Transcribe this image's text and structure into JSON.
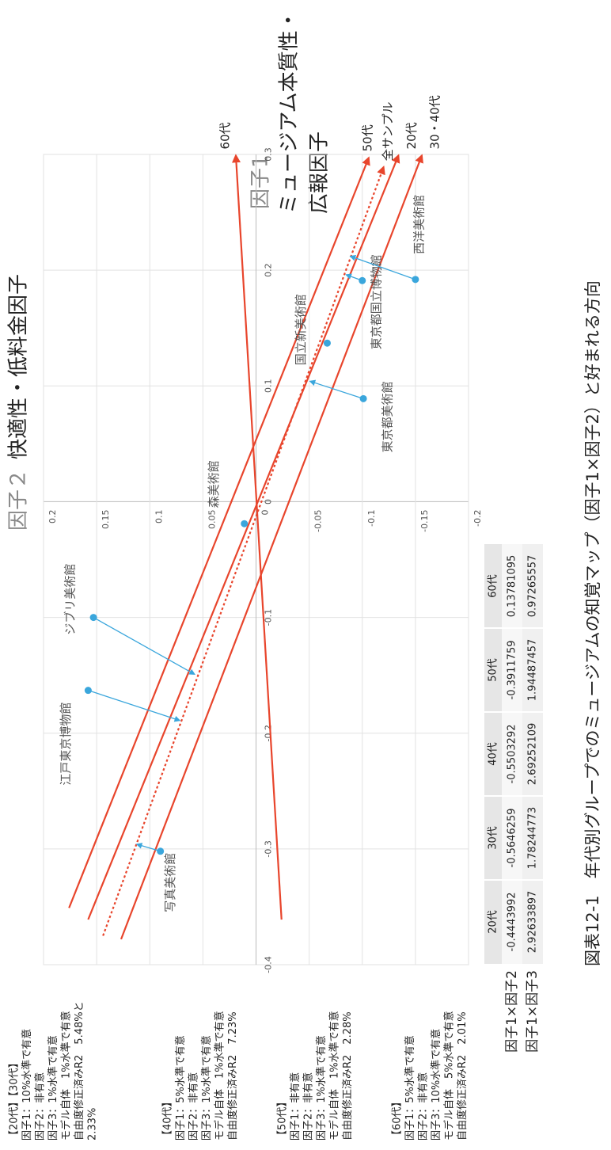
{
  "chart_data": {
    "type": "scatter",
    "x_axis_label": "因子1",
    "x_axis_desc": [
      "ミュージアム本質性・",
      "広報因子"
    ],
    "y_axis_label": "因子２",
    "y_axis_desc": "快適性・低料金因子",
    "xlim": [
      -0.4,
      0.3
    ],
    "xticks": [
      -0.4,
      -0.3,
      -0.2,
      -0.1,
      0,
      0.1,
      0.2,
      0.3
    ],
    "ylim": [
      -0.2,
      0.2
    ],
    "yticks": [
      -0.2,
      -0.15,
      -0.1,
      -0.05,
      0,
      0.05,
      0.1,
      0.15,
      0.2
    ],
    "grid": true,
    "points": {
      "color": "#3aa6dc",
      "labels": [
        "森美術館",
        "国立新美術館",
        "東京都美術館",
        "東京都国立博物館",
        "西洋美術館",
        "ジブリ美術館",
        "江戸東京博物館",
        "写真美術館"
      ],
      "x": [
        -0.019,
        0.137,
        0.089,
        0.191,
        0.192,
        -0.1,
        -0.163,
        -0.302
      ],
      "y": [
        0.011,
        -0.067,
        -0.101,
        -0.1,
        -0.15,
        0.153,
        0.158,
        0.09
      ],
      "arrow_x": [
        null,
        null,
        0.104,
        0.196,
        0.212,
        -0.149,
        -0.189,
        -0.296
      ],
      "arrow_y": [
        null,
        null,
        -0.051,
        -0.085,
        -0.089,
        0.058,
        0.072,
        0.112
      ]
    },
    "vectors": [
      {
        "name": "60代",
        "color": "#e8452c",
        "dashed": false,
        "x": [
          -0.361,
          0.299
        ],
        "y": [
          -0.024,
          0.019
        ]
      },
      {
        "name": "50代",
        "color": "#e8452c",
        "dashed": false,
        "x": [
          -0.351,
          0.297
        ],
        "y": [
          0.176,
          -0.106
        ]
      },
      {
        "name": "全サンプル",
        "color": "#e8452c",
        "dashed": true,
        "x": [
          -0.375,
          0.289
        ],
        "y": [
          0.144,
          -0.12
        ]
      },
      {
        "name": "20代",
        "color": "#e8452c",
        "dashed": false,
        "x": [
          -0.361,
          0.299
        ],
        "y": [
          0.158,
          -0.134
        ]
      },
      {
        "name": "30・40代",
        "color": "#e8452c",
        "dashed": false,
        "x": [
          -0.378,
          0.299
        ],
        "y": [
          0.127,
          -0.156
        ]
      }
    ]
  },
  "table": {
    "columns": [
      "20代",
      "30代",
      "40代",
      "50代",
      "60代"
    ],
    "rows": [
      {
        "label": "因子1×因子2",
        "values": [
          -0.4443992,
          -0.5646259,
          -0.5503292,
          -0.3911759,
          0.13781095
        ]
      },
      {
        "label": "因子1×因子3",
        "values": [
          2.92633897,
          1.78244773,
          2.69252109,
          1.94487457,
          0.97265557
        ]
      }
    ]
  },
  "notes": [
    [
      "【20代】【30代】",
      "因子1：10%水準で有意",
      "因子2：非有意",
      "因子3：1%水準で有意",
      "モデル自体　1%水準で有意",
      "自由度修正済みR2　5.48%と",
      "2.33%"
    ],
    [
      "【40代】",
      "因子1：5%水準で有意",
      "因子2：非有意",
      "因子3：1%水準で有意",
      "モデル自体　1%水準で有意",
      "自由度修正済みR2　7.23%"
    ],
    [
      "【50代】",
      "因子1：非有意",
      "因子2：非有意",
      "因子3：1%水準で有意",
      "モデル自体　1%水準で有意",
      "自由度修正済みR2　2.28%"
    ],
    [
      "【60代】",
      "因子1：5%水準で有意",
      "因子2：非有意",
      "因子3：10%水準で有意",
      "モデル自体　5%水準で有意",
      "自由度修正済みR2　2.01%"
    ]
  ],
  "caption": "図表12-1　年代別グループでのミュージアムの知覚マップ（因子1×因子2）と好まれる方向"
}
